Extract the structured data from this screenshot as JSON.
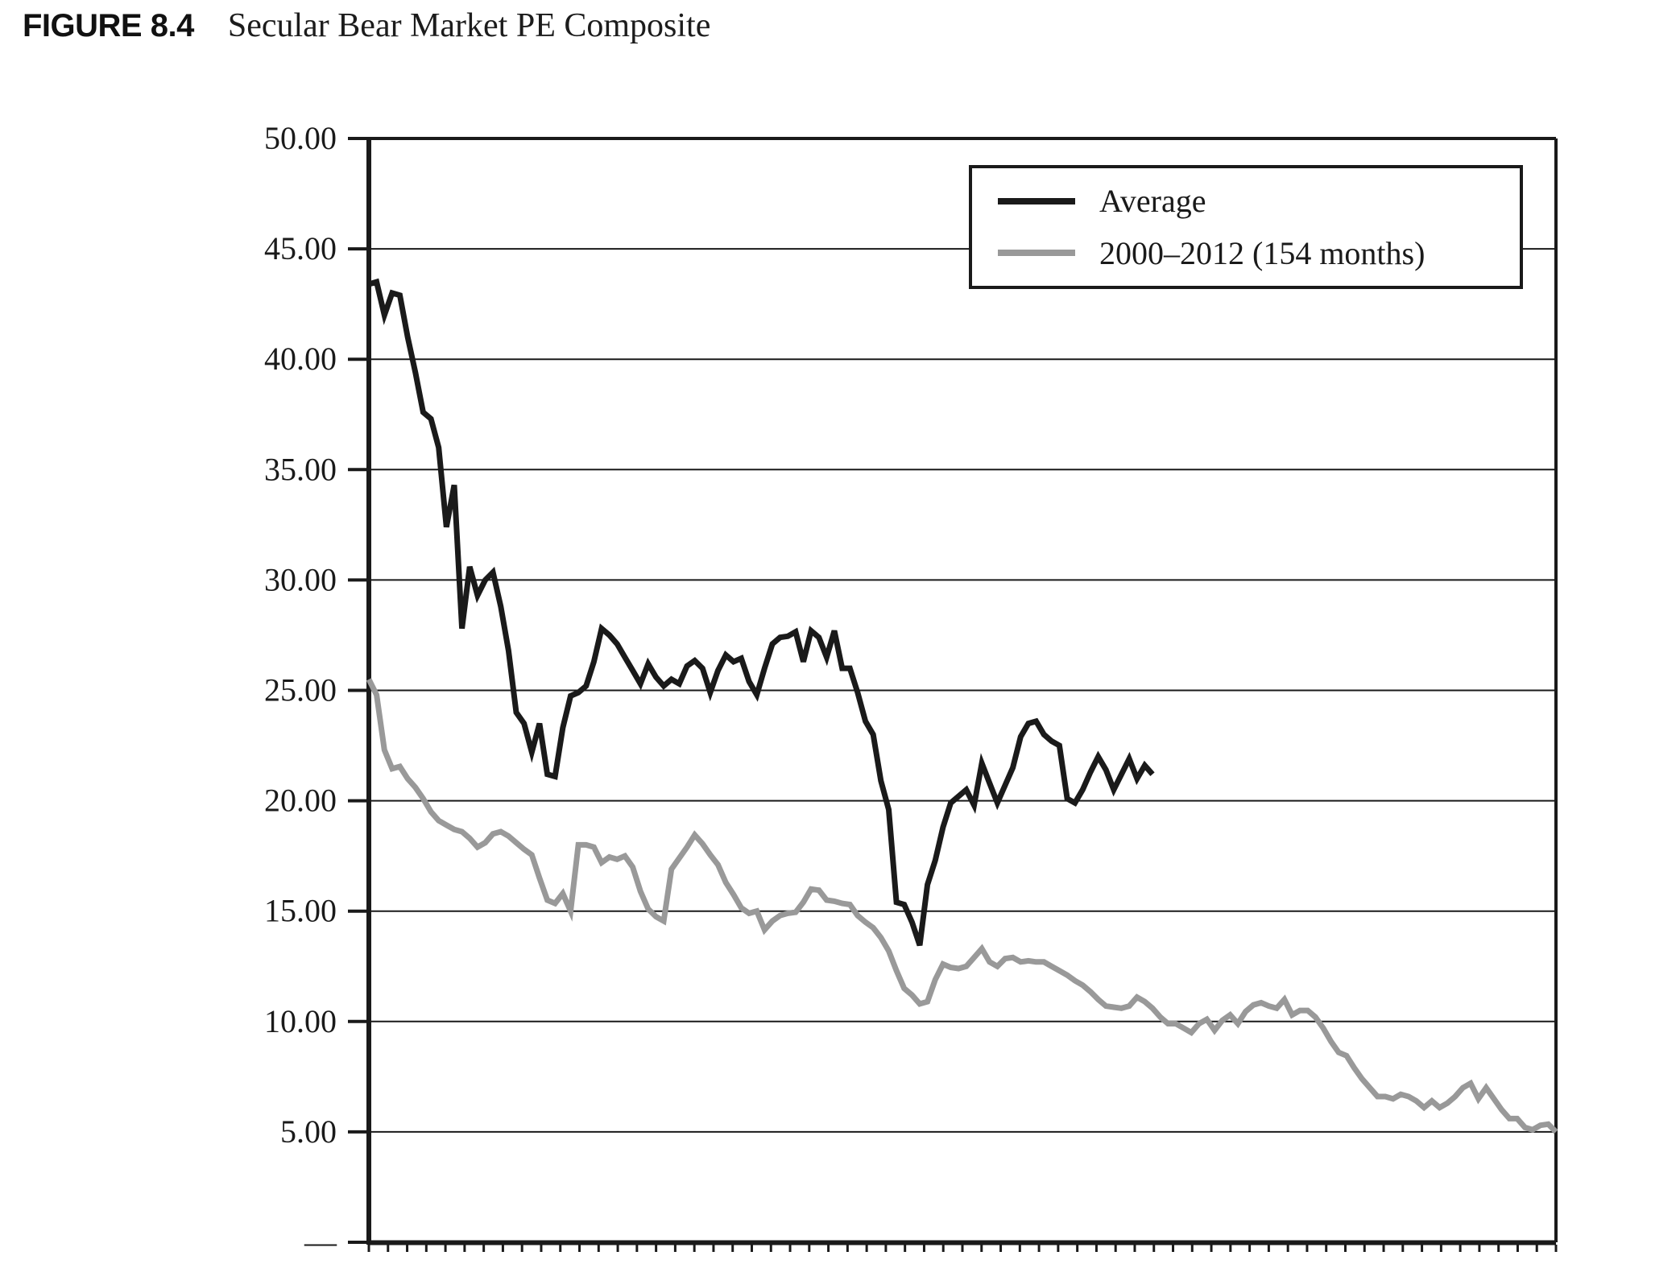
{
  "figure": {
    "label": "FIGURE 8.4",
    "caption": "Secular Bear Market PE Composite"
  },
  "colors": {
    "series_average": "#1a1a1a",
    "series_2000s": "#999999",
    "gridline": "#1a1a1a",
    "frame": "#1a1a1a",
    "background": "#ffffff"
  },
  "chart_data": {
    "type": "line",
    "title": "Secular Bear Market PE Composite",
    "xlabel": "",
    "ylabel": "",
    "ylim": [
      0,
      50
    ],
    "x_unit": "months",
    "grid": "horizontal",
    "legend_position": "top-right",
    "y_ticks": [
      {
        "value": 50,
        "label": "50.00"
      },
      {
        "value": 45,
        "label": "45.00"
      },
      {
        "value": 40,
        "label": "40.00"
      },
      {
        "value": 35,
        "label": "35.00"
      },
      {
        "value": 30,
        "label": "30.00"
      },
      {
        "value": 25,
        "label": "25.00"
      },
      {
        "value": 20,
        "label": "20.00"
      },
      {
        "value": 15,
        "label": "15.00"
      },
      {
        "value": 10,
        "label": "10.00"
      },
      {
        "value": 5,
        "label": "5.00"
      },
      {
        "value": 0,
        "label": "—"
      }
    ],
    "series": [
      {
        "name": "Average",
        "color": "#1a1a1a",
        "stroke_width": 7,
        "values": [
          43.4,
          43.5,
          42.0,
          43.0,
          42.9,
          41.0,
          39.4,
          37.6,
          37.3,
          36.0,
          32.4,
          34.3,
          27.8,
          30.6,
          29.3,
          30.0,
          30.35,
          28.8,
          26.8,
          24.0,
          23.5,
          22.2,
          23.5,
          21.2,
          21.1,
          23.3,
          24.75,
          24.9,
          25.2,
          26.3,
          27.8,
          27.5,
          27.1,
          26.5,
          25.9,
          25.3,
          26.2,
          25.6,
          25.2,
          25.5,
          25.3,
          26.1,
          26.35,
          26.0,
          24.9,
          25.9,
          26.6,
          26.3,
          26.45,
          25.4,
          24.8,
          26.0,
          27.1,
          27.4,
          27.45,
          27.65,
          26.3,
          27.7,
          27.4,
          26.5,
          27.7,
          26.0,
          26.0,
          24.9,
          23.6,
          23.0,
          20.9,
          19.6,
          15.4,
          15.3,
          14.5,
          13.45,
          16.2,
          17.3,
          18.8,
          19.9,
          20.2,
          20.5,
          19.8,
          21.7,
          20.8,
          19.9,
          20.7,
          21.5,
          22.9,
          23.5,
          23.6,
          23.0,
          22.7,
          22.5,
          20.1,
          19.9,
          20.5,
          21.3,
          22.0,
          21.4,
          20.5,
          21.2,
          21.9,
          21.0,
          21.6,
          21.2
        ]
      },
      {
        "name": "2000–2012 (154 months)",
        "color": "#999999",
        "stroke_width": 7,
        "values": [
          25.5,
          24.8,
          22.3,
          21.45,
          21.55,
          21.0,
          20.6,
          20.1,
          19.5,
          19.1,
          18.9,
          18.7,
          18.6,
          18.3,
          17.9,
          18.1,
          18.5,
          18.6,
          18.4,
          18.1,
          17.8,
          17.55,
          16.5,
          15.5,
          15.35,
          15.8,
          15.0,
          18.0,
          18.0,
          17.9,
          17.2,
          17.45,
          17.35,
          17.5,
          17.0,
          15.9,
          15.1,
          14.75,
          14.55,
          16.9,
          17.4,
          17.9,
          18.45,
          18.05,
          17.55,
          17.1,
          16.3,
          15.75,
          15.15,
          14.9,
          15.0,
          14.15,
          14.55,
          14.8,
          14.9,
          14.95,
          15.4,
          16.0,
          15.95,
          15.5,
          15.45,
          15.35,
          15.3,
          14.8,
          14.5,
          14.25,
          13.8,
          13.2,
          12.3,
          11.5,
          11.2,
          10.8,
          10.9,
          11.9,
          12.6,
          12.45,
          12.4,
          12.5,
          12.9,
          13.3,
          12.7,
          12.5,
          12.85,
          12.9,
          12.7,
          12.75,
          12.7,
          12.7,
          12.5,
          12.3,
          12.1,
          11.85,
          11.65,
          11.35,
          11.0,
          10.7,
          10.65,
          10.6,
          10.7,
          11.1,
          10.9,
          10.6,
          10.2,
          9.9,
          9.9,
          9.7,
          9.5,
          9.9,
          10.1,
          9.6,
          10.05,
          10.3,
          9.9,
          10.45,
          10.75,
          10.85,
          10.7,
          10.6,
          11.0,
          10.3,
          10.5,
          10.5,
          10.2,
          9.7,
          9.1,
          8.6,
          8.45,
          7.9,
          7.4,
          7.0,
          6.6,
          6.6,
          6.5,
          6.7,
          6.6,
          6.4,
          6.1,
          6.4,
          6.1,
          6.3,
          6.6,
          7.0,
          7.2,
          6.5,
          7.0,
          6.5,
          6.0,
          5.6,
          5.6,
          5.2,
          5.1,
          5.3,
          5.35,
          5.0
        ]
      }
    ]
  },
  "legend": {
    "items": [
      {
        "label": "Average",
        "color": "#1a1a1a"
      },
      {
        "label": "2000–2012 (154 months)",
        "color": "#999999"
      }
    ]
  }
}
